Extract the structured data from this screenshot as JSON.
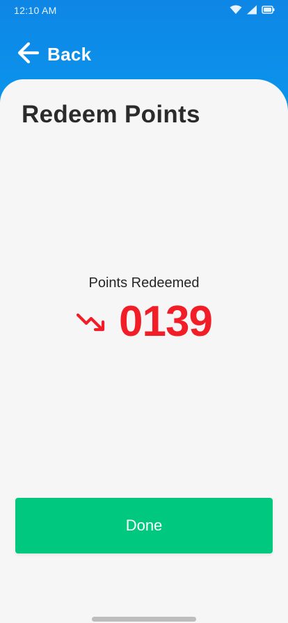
{
  "status_bar": {
    "time": "12:10 AM",
    "icons": [
      "wifi-icon",
      "signal-icon",
      "battery-icon"
    ]
  },
  "header": {
    "back_label": "Back",
    "back_icon": "arrow-left-icon"
  },
  "page": {
    "title": "Redeem Points"
  },
  "points": {
    "label": "Points Redeemed",
    "value": "0139",
    "trend_icon": "trending-down-icon"
  },
  "actions": {
    "done_label": "Done"
  },
  "colors": {
    "header_blue": "#0a8fe9",
    "points_red": "#f11d27",
    "done_green": "#00c97f",
    "background": "#f6f6f6"
  }
}
